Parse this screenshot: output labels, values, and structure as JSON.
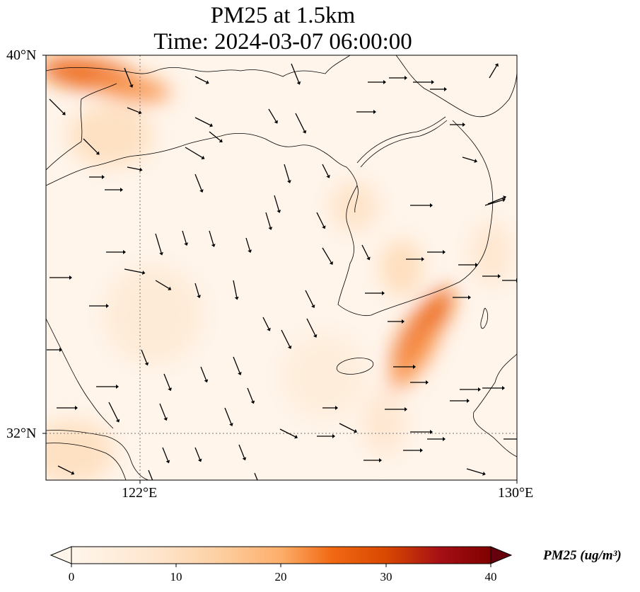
{
  "title": {
    "line1": "PM25 at 1.5km",
    "line2": "Time: 2024-03-07 06:00:00"
  },
  "map": {
    "lon_range": [
      119,
      130
    ],
    "lat_range": [
      31,
      40
    ],
    "lat_labels": [
      "40°N",
      "32°N"
    ],
    "lon_labels": [
      "122°E",
      "130°E"
    ],
    "gridlines": [
      {
        "type": "meridian",
        "value": 122
      },
      {
        "type": "parallel",
        "value": 32
      }
    ],
    "field": {
      "variable": "PM25",
      "level": "1.5km",
      "colormap": "Oranges",
      "background_value": 2,
      "hotspots": [
        {
          "lon": 120.0,
          "lat": 39.6,
          "value": 26
        },
        {
          "lon": 121.0,
          "lat": 39.3,
          "value": 22
        },
        {
          "lon": 120.5,
          "lat": 38.3,
          "value": 10
        },
        {
          "lon": 127.8,
          "lat": 34.2,
          "value": 26
        },
        {
          "lon": 127.6,
          "lat": 33.6,
          "value": 22
        },
        {
          "lon": 127.3,
          "lat": 35.5,
          "value": 11
        },
        {
          "lon": 126.2,
          "lat": 36.8,
          "value": 9
        },
        {
          "lon": 129.4,
          "lat": 35.8,
          "value": 8
        },
        {
          "lon": 119.6,
          "lat": 31.6,
          "value": 10
        },
        {
          "lon": 126.9,
          "lat": 32.2,
          "value": 8
        },
        {
          "lon": 121.5,
          "lat": 34.5,
          "value": 6
        },
        {
          "lon": 125.5,
          "lat": 33.2,
          "value": 5
        }
      ]
    },
    "wind_arrows": "vector field (southward / south-eastward flow over the Yellow Sea, eastward over Korea)"
  },
  "colorbar": {
    "min": 0,
    "max": 40,
    "ticks": [
      "0",
      "10",
      "20",
      "30",
      "40"
    ],
    "label": "PM25 (ug/m³)",
    "extend": "both",
    "colors": [
      "#fff5eb",
      "#fdd0a2",
      "#fd8d3c",
      "#d94801",
      "#a50f15",
      "#67000d"
    ]
  }
}
